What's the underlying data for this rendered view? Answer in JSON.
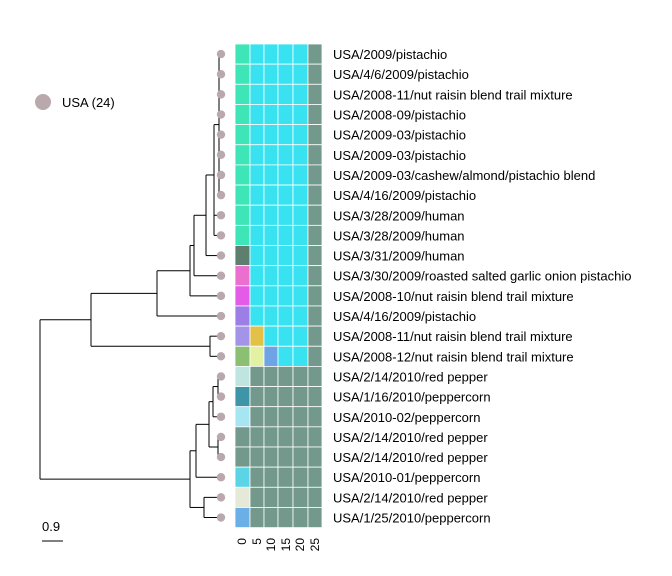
{
  "legend": {
    "label": "USA (24)",
    "dot_color": "#b9a9ad"
  },
  "scale_bar": {
    "label": "0.9"
  },
  "colors": {
    "branch": "#000000",
    "tip": "#b9a9ad",
    "grid_line": "#ffffff"
  },
  "leaves": [
    {
      "label": "USA/2009/pistachio",
      "first": "#3ee6b7",
      "rest": [
        "#38e2f0",
        "#38e2f0",
        "#38e2f0",
        "#38e2f0",
        "#72998b"
      ]
    },
    {
      "label": "USA/4/6/2009/pistachio",
      "first": "#3ee6b7",
      "rest": [
        "#38e2f0",
        "#38e2f0",
        "#38e2f0",
        "#38e2f0",
        "#72998b"
      ]
    },
    {
      "label": "USA/2008-11/nut raisin blend trail mixture",
      "first": "#3ee6b7",
      "rest": [
        "#38e2f0",
        "#38e2f0",
        "#38e2f0",
        "#38e2f0",
        "#72998b"
      ]
    },
    {
      "label": "USA/2008-09/pistachio",
      "first": "#3ee6b7",
      "rest": [
        "#38e2f0",
        "#38e2f0",
        "#38e2f0",
        "#38e2f0",
        "#72998b"
      ]
    },
    {
      "label": "USA/2009-03/pistachio",
      "first": "#3ee6b7",
      "rest": [
        "#38e2f0",
        "#38e2f0",
        "#38e2f0",
        "#38e2f0",
        "#72998b"
      ]
    },
    {
      "label": "USA/2009-03/pistachio",
      "first": "#3ee6b7",
      "rest": [
        "#38e2f0",
        "#38e2f0",
        "#38e2f0",
        "#38e2f0",
        "#72998b"
      ]
    },
    {
      "label": "USA/2009-03/cashew/almond/pistachio blend",
      "first": "#3ee6b7",
      "rest": [
        "#38e2f0",
        "#38e2f0",
        "#38e2f0",
        "#38e2f0",
        "#72998b"
      ]
    },
    {
      "label": "USA/4/16/2009/pistachio",
      "first": "#3ee6b7",
      "rest": [
        "#38e2f0",
        "#38e2f0",
        "#38e2f0",
        "#38e2f0",
        "#72998b"
      ]
    },
    {
      "label": "USA/3/28/2009/human",
      "first": "#3ee6b7",
      "rest": [
        "#38e2f0",
        "#38e2f0",
        "#38e2f0",
        "#38e2f0",
        "#72998b"
      ]
    },
    {
      "label": "USA/3/28/2009/human",
      "first": "#3ee6b7",
      "rest": [
        "#38e2f0",
        "#38e2f0",
        "#38e2f0",
        "#38e2f0",
        "#72998b"
      ]
    },
    {
      "label": "USA/3/31/2009/human",
      "first": "#5f7f6e",
      "rest": [
        "#38e2f0",
        "#38e2f0",
        "#38e2f0",
        "#38e2f0",
        "#72998b"
      ]
    },
    {
      "label": "USA/3/30/2009/roasted salted garlic onion pistachio",
      "first": "#ea6fcf",
      "rest": [
        "#38e2f0",
        "#38e2f0",
        "#38e2f0",
        "#38e2f0",
        "#72998b"
      ]
    },
    {
      "label": "USA/2008-10/nut raisin blend trail mixture",
      "first": "#e45be8",
      "rest": [
        "#38e2f0",
        "#38e2f0",
        "#38e2f0",
        "#38e2f0",
        "#72998b"
      ]
    },
    {
      "label": "USA/4/16/2009/pistachio",
      "first": "#9c7ee6",
      "rest": [
        "#38e2f0",
        "#38e2f0",
        "#38e2f0",
        "#38e2f0",
        "#72998b"
      ]
    },
    {
      "label": "USA/2008-11/nut raisin blend trail mixture",
      "first": "#a394ea",
      "rest": [
        "#e3c148",
        "#38e2f0",
        "#38e2f0",
        "#38e2f0",
        "#72998b"
      ]
    },
    {
      "label": "USA/2008-12/nut raisin blend trail mixture",
      "first": "#8bbf72",
      "rest": [
        "#e2f2a2",
        "#6ea3e6",
        "#38e2f0",
        "#38e2f0",
        "#72998b"
      ]
    },
    {
      "label": "USA/2/14/2010/red pepper",
      "first": "#bfe5e0",
      "rest": [
        "#72998b",
        "#72998b",
        "#72998b",
        "#72998b",
        "#72998b"
      ]
    },
    {
      "label": "USA/1/16/2010/peppercorn",
      "first": "#3f95a8",
      "rest": [
        "#72998b",
        "#72998b",
        "#72998b",
        "#72998b",
        "#72998b"
      ]
    },
    {
      "label": "USA/2010-02/peppercorn",
      "first": "#a6e6f2",
      "rest": [
        "#72998b",
        "#72998b",
        "#72998b",
        "#72998b",
        "#72998b"
      ]
    },
    {
      "label": "USA/2/14/2010/red pepper",
      "first": "#72998b",
      "rest": [
        "#72998b",
        "#72998b",
        "#72998b",
        "#72998b",
        "#72998b"
      ]
    },
    {
      "label": "USA/2/14/2010/red pepper",
      "first": "#72998b",
      "rest": [
        "#72998b",
        "#72998b",
        "#72998b",
        "#72998b",
        "#72998b"
      ]
    },
    {
      "label": "USA/2010-01/peppercorn",
      "first": "#5bd4e6",
      "rest": [
        "#72998b",
        "#72998b",
        "#72998b",
        "#72998b",
        "#72998b"
      ]
    },
    {
      "label": "USA/2/14/2010/red pepper",
      "first": "#e6e8d8",
      "rest": [
        "#72998b",
        "#72998b",
        "#72998b",
        "#72998b",
        "#72998b"
      ]
    },
    {
      "label": "USA/1/25/2010/peppercorn",
      "first": "#6ab0e6",
      "rest": [
        "#72998b",
        "#72998b",
        "#72998b",
        "#72998b",
        "#72998b"
      ]
    }
  ],
  "x_axis": {
    "ticks": [
      "0",
      "5",
      "10",
      "15",
      "20",
      "25"
    ]
  }
}
